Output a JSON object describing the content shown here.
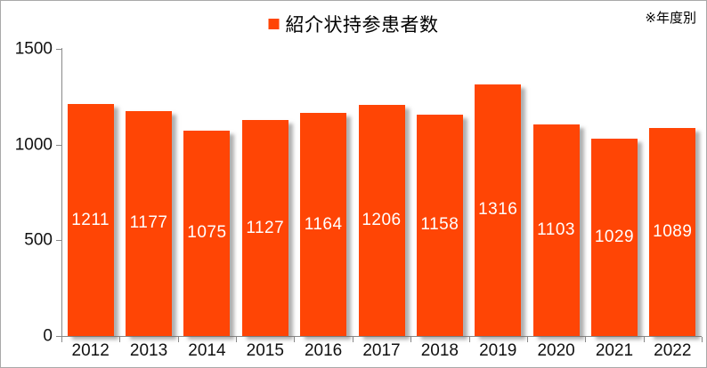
{
  "note": "※年度別",
  "legend": {
    "label": "紹介状持参患者数",
    "color": "#FF4505"
  },
  "chart_data": {
    "type": "bar",
    "title": "紹介状持参患者数",
    "annotation": "※年度別",
    "categories": [
      "2012",
      "2013",
      "2014",
      "2015",
      "2016",
      "2017",
      "2018",
      "2019",
      "2020",
      "2021",
      "2022"
    ],
    "values": [
      1211,
      1177,
      1075,
      1127,
      1164,
      1206,
      1158,
      1316,
      1103,
      1029,
      1089
    ],
    "xlabel": "",
    "ylabel": "",
    "ylim": [
      0,
      1500
    ],
    "yticks": [
      0,
      500,
      1000,
      1500
    ],
    "grid": false,
    "legend_position": "top-center",
    "bar_color": "#FF4505",
    "data_label_color": "#FFFFFF",
    "data_label_position": "center"
  }
}
